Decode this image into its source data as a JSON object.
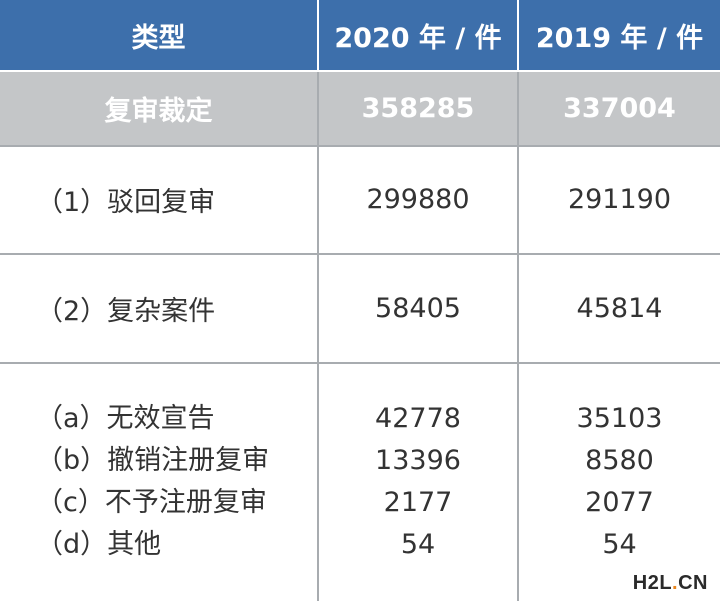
{
  "header": {
    "col_type": "类型",
    "col_2020": "2020 年 / 件",
    "col_2019": "2019 年 / 件"
  },
  "summary": {
    "label": "复审裁定",
    "v2020": "358285",
    "v2019": "337004"
  },
  "rows": [
    {
      "label": "（1）驳回复审",
      "v2020": "299880",
      "v2019": "291190"
    },
    {
      "label": "（2）复杂案件",
      "v2020": "58405",
      "v2019": "45814"
    }
  ],
  "sub_rows": [
    {
      "label": "（a）无效宣告",
      "v2020": "42778",
      "v2019": "35103"
    },
    {
      "label": "（b）撤销注册复审",
      "v2020": "13396",
      "v2019": "8580"
    },
    {
      "label": "（c）不予注册复审",
      "v2020": "2177",
      "v2019": "2077"
    },
    {
      "label": "（d）其他",
      "v2020": "54",
      "v2019": "54"
    }
  ],
  "watermark": {
    "prefix": "H2L",
    "accent": ".",
    "suffix": "CN"
  },
  "colors": {
    "header_bg": "#3d6fab",
    "summary_bg": "#c4c6c8",
    "border": "#a8acb0",
    "accent": "#e8841c"
  }
}
